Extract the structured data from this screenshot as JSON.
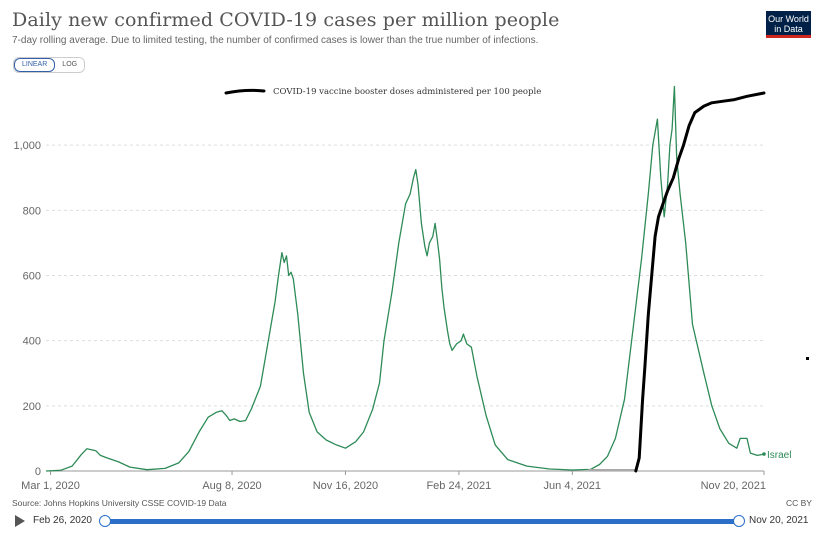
{
  "title": "Daily new confirmed COVID-19 cases per million people",
  "subtitle": "7-day rolling average. Due to limited testing, the number of confirmed cases is lower than the true number of infections.",
  "logo": {
    "line1": "Our World",
    "line2": "in Data"
  },
  "scale_toggle": {
    "linear_label": "LINEAR",
    "log_label": "LOG",
    "selected": "LINEAR"
  },
  "source": "Source: Johns Hopkins University CSSE COVID-19 Data",
  "license": "CC BY",
  "timeline": {
    "start_label": "Feb 26, 2020",
    "end_label": "Nov 20, 2021"
  },
  "colors": {
    "cases_series": "#2e8b57",
    "booster_series": "#000000",
    "timeline": "#2b6fc9"
  },
  "chart_data": {
    "type": "line",
    "ylim": [
      0,
      1200
    ],
    "y_ticks": [
      0,
      200,
      400,
      600,
      800,
      1000
    ],
    "y_tick_labels": [
      "0",
      "200",
      "400",
      "600",
      "800",
      "1,000"
    ],
    "x_range": [
      "2020-02-26",
      "2021-11-20"
    ],
    "x_ticks": [
      "2020-03-01",
      "2020-08-08",
      "2020-11-16",
      "2021-02-24",
      "2021-06-04",
      "2021-11-20"
    ],
    "x_tick_labels": [
      "Mar 1, 2020",
      "Aug 8, 2020",
      "Nov 16, 2020",
      "Feb 24, 2021",
      "Jun 4, 2021",
      "Nov 20, 2021"
    ],
    "grid": "horizontal",
    "series": [
      {
        "name": "Israel",
        "points": [
          [
            "2020-02-26",
            0
          ],
          [
            "2020-03-10",
            2
          ],
          [
            "2020-03-20",
            15
          ],
          [
            "2020-03-28",
            50
          ],
          [
            "2020-04-02",
            68
          ],
          [
            "2020-04-06",
            65
          ],
          [
            "2020-04-10",
            62
          ],
          [
            "2020-04-14",
            48
          ],
          [
            "2020-04-20",
            40
          ],
          [
            "2020-04-30",
            28
          ],
          [
            "2020-05-10",
            12
          ],
          [
            "2020-05-25",
            4
          ],
          [
            "2020-06-10",
            8
          ],
          [
            "2020-06-22",
            25
          ],
          [
            "2020-07-01",
            60
          ],
          [
            "2020-07-10",
            120
          ],
          [
            "2020-07-18",
            165
          ],
          [
            "2020-07-25",
            180
          ],
          [
            "2020-07-30",
            185
          ],
          [
            "2020-08-03",
            170
          ],
          [
            "2020-08-06",
            155
          ],
          [
            "2020-08-10",
            160
          ],
          [
            "2020-08-15",
            152
          ],
          [
            "2020-08-20",
            155
          ],
          [
            "2020-08-25",
            190
          ],
          [
            "2020-09-02",
            260
          ],
          [
            "2020-09-08",
            380
          ],
          [
            "2020-09-12",
            460
          ],
          [
            "2020-09-15",
            520
          ],
          [
            "2020-09-18",
            600
          ],
          [
            "2020-09-21",
            670
          ],
          [
            "2020-09-23",
            640
          ],
          [
            "2020-09-25",
            660
          ],
          [
            "2020-09-27",
            600
          ],
          [
            "2020-09-29",
            610
          ],
          [
            "2020-10-01",
            590
          ],
          [
            "2020-10-05",
            480
          ],
          [
            "2020-10-10",
            300
          ],
          [
            "2020-10-15",
            180
          ],
          [
            "2020-10-22",
            120
          ],
          [
            "2020-10-30",
            95
          ],
          [
            "2020-11-08",
            80
          ],
          [
            "2020-11-16",
            70
          ],
          [
            "2020-11-25",
            90
          ],
          [
            "2020-12-02",
            120
          ],
          [
            "2020-12-10",
            190
          ],
          [
            "2020-12-16",
            270
          ],
          [
            "2020-12-20",
            400
          ],
          [
            "2020-12-27",
            550
          ],
          [
            "2021-01-02",
            700
          ],
          [
            "2021-01-08",
            820
          ],
          [
            "2021-01-12",
            850
          ],
          [
            "2021-01-15",
            900
          ],
          [
            "2021-01-17",
            925
          ],
          [
            "2021-01-19",
            880
          ],
          [
            "2021-01-22",
            760
          ],
          [
            "2021-01-25",
            690
          ],
          [
            "2021-01-27",
            660
          ],
          [
            "2021-01-29",
            700
          ],
          [
            "2021-02-01",
            720
          ],
          [
            "2021-02-03",
            760
          ],
          [
            "2021-02-05",
            710
          ],
          [
            "2021-02-07",
            650
          ],
          [
            "2021-02-09",
            560
          ],
          [
            "2021-02-11",
            500
          ],
          [
            "2021-02-14",
            430
          ],
          [
            "2021-02-16",
            390
          ],
          [
            "2021-02-18",
            370
          ],
          [
            "2021-02-22",
            390
          ],
          [
            "2021-02-26",
            400
          ],
          [
            "2021-02-28",
            420
          ],
          [
            "2021-03-03",
            390
          ],
          [
            "2021-03-07",
            380
          ],
          [
            "2021-03-12",
            290
          ],
          [
            "2021-03-20",
            170
          ],
          [
            "2021-03-28",
            80
          ],
          [
            "2021-04-08",
            35
          ],
          [
            "2021-04-25",
            15
          ],
          [
            "2021-05-15",
            6
          ],
          [
            "2021-06-04",
            3
          ],
          [
            "2021-06-20",
            5
          ],
          [
            "2021-06-28",
            20
          ],
          [
            "2021-07-05",
            45
          ],
          [
            "2021-07-12",
            100
          ],
          [
            "2021-07-20",
            220
          ],
          [
            "2021-07-28",
            450
          ],
          [
            "2021-08-04",
            650
          ],
          [
            "2021-08-10",
            850
          ],
          [
            "2021-08-14",
            1000
          ],
          [
            "2021-08-18",
            1080
          ],
          [
            "2021-08-21",
            900
          ],
          [
            "2021-08-24",
            780
          ],
          [
            "2021-08-27",
            880
          ],
          [
            "2021-08-29",
            1000
          ],
          [
            "2021-08-31",
            1050
          ],
          [
            "2021-09-02",
            1180
          ],
          [
            "2021-09-04",
            960
          ],
          [
            "2021-09-07",
            850
          ],
          [
            "2021-09-12",
            700
          ],
          [
            "2021-09-18",
            450
          ],
          [
            "2021-09-28",
            300
          ],
          [
            "2021-10-05",
            200
          ],
          [
            "2021-10-12",
            130
          ],
          [
            "2021-10-20",
            85
          ],
          [
            "2021-10-27",
            70
          ],
          [
            "2021-10-30",
            100
          ],
          [
            "2021-11-05",
            100
          ],
          [
            "2021-11-08",
            55
          ],
          [
            "2021-11-14",
            48
          ],
          [
            "2021-11-20",
            52
          ]
        ]
      },
      {
        "name": "COVID-19 vaccine booster doses administered per 100 people",
        "points": [
          [
            "2021-07-30",
            0
          ],
          [
            "2021-08-02",
            40
          ],
          [
            "2021-08-05",
            220
          ],
          [
            "2021-08-07",
            320
          ],
          [
            "2021-08-10",
            480
          ],
          [
            "2021-08-13",
            600
          ],
          [
            "2021-08-16",
            720
          ],
          [
            "2021-08-19",
            780
          ],
          [
            "2021-08-23",
            820
          ],
          [
            "2021-08-27",
            860
          ],
          [
            "2021-09-01",
            900
          ],
          [
            "2021-09-06",
            960
          ],
          [
            "2021-09-10",
            1000
          ],
          [
            "2021-09-15",
            1060
          ],
          [
            "2021-09-20",
            1100
          ],
          [
            "2021-09-28",
            1120
          ],
          [
            "2021-10-05",
            1130
          ],
          [
            "2021-10-15",
            1135
          ],
          [
            "2021-10-25",
            1140
          ],
          [
            "2021-11-05",
            1150
          ],
          [
            "2021-11-20",
            1160
          ]
        ]
      }
    ]
  }
}
